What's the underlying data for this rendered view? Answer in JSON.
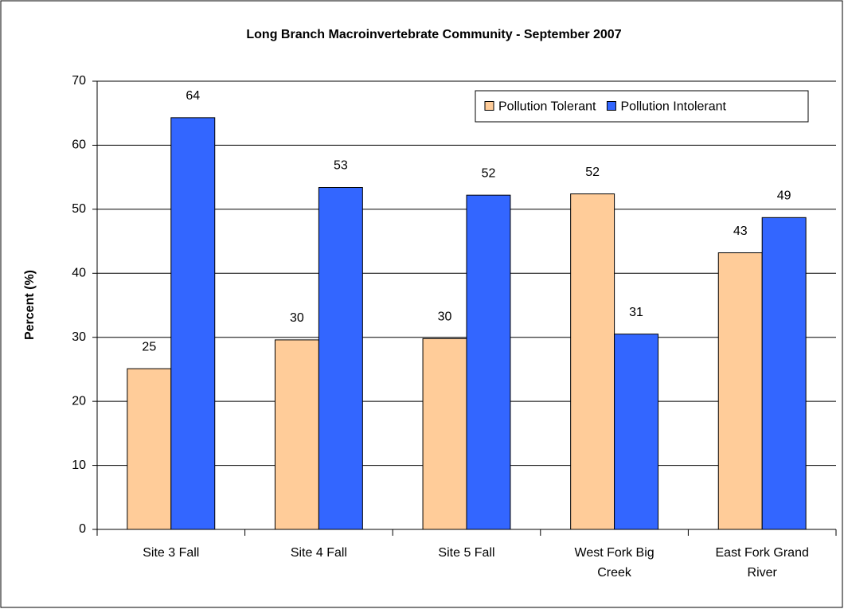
{
  "chart_data": {
    "type": "bar",
    "title": "Long Branch Macroinvertebrate Community - September 2007",
    "y_label": "Percent (%)",
    "categories": [
      "Site 3 Fall",
      "Site 4 Fall",
      "Site 5 Fall",
      "West Fork Big Creek",
      "East Fork Grand River"
    ],
    "series": [
      {
        "name": "Pollution Tolerant",
        "color": "#FFCC99",
        "values": [
          25.1,
          29.6,
          29.8,
          52.4,
          43.2
        ],
        "value_labels": [
          "25",
          "30",
          "30",
          "52",
          "43"
        ]
      },
      {
        "name": "Pollution Intolerant",
        "color": "#3366FF",
        "values": [
          64.3,
          53.4,
          52.2,
          30.5,
          48.7
        ],
        "value_labels": [
          "64",
          "53",
          "52",
          "31",
          "49"
        ]
      }
    ],
    "ylim": [
      0,
      70
    ],
    "yticks": [
      0,
      10,
      20,
      30,
      40,
      50,
      60,
      70
    ],
    "grid": true,
    "legend": "upper right"
  }
}
